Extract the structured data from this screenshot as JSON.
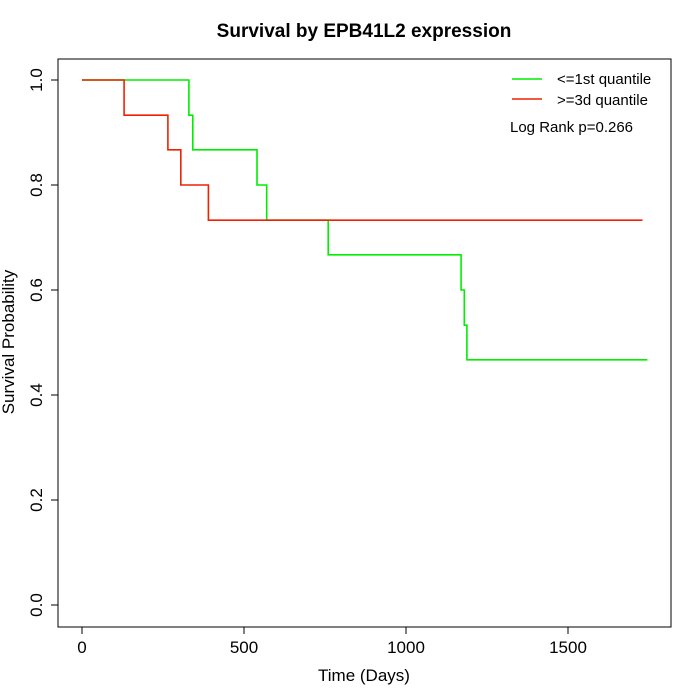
{
  "chart_data": {
    "type": "line",
    "title": "Survival by EPB41L2 expression",
    "xlabel": "Time (Days)",
    "ylabel": "Survival Probability",
    "xlim": [
      0,
      1750
    ],
    "ylim": [
      0,
      1
    ],
    "x_ticks": [
      0,
      500,
      1000,
      1500
    ],
    "y_ticks": [
      0.0,
      0.2,
      0.4,
      0.6,
      0.8,
      1.0
    ],
    "x_tick_labels": [
      "0",
      "500",
      "1000",
      "1500"
    ],
    "y_tick_labels": [
      "0.0",
      "0.2",
      "0.4",
      "0.6",
      "0.8",
      "1.0"
    ],
    "legend_position": "top-right",
    "annotation": "Log Rank p=0.266",
    "grid": false,
    "series": [
      {
        "name": "<=1st quantile",
        "color": "#00ee00",
        "step": true,
        "points": [
          [
            0,
            1.0
          ],
          [
            330,
            1.0
          ],
          [
            330,
            0.933
          ],
          [
            342,
            0.933
          ],
          [
            342,
            0.867
          ],
          [
            540,
            0.867
          ],
          [
            540,
            0.8
          ],
          [
            570,
            0.8
          ],
          [
            570,
            0.733
          ],
          [
            760,
            0.733
          ],
          [
            760,
            0.667
          ],
          [
            1170,
            0.667
          ],
          [
            1170,
            0.6
          ],
          [
            1180,
            0.6
          ],
          [
            1180,
            0.533
          ],
          [
            1188,
            0.533
          ],
          [
            1188,
            0.467
          ],
          [
            1745,
            0.467
          ]
        ]
      },
      {
        "name": ">=3d quantile",
        "color": "#ee2200",
        "step": true,
        "points": [
          [
            0,
            1.0
          ],
          [
            130,
            1.0
          ],
          [
            130,
            0.933
          ],
          [
            265,
            0.933
          ],
          [
            265,
            0.867
          ],
          [
            305,
            0.867
          ],
          [
            305,
            0.8
          ],
          [
            390,
            0.8
          ],
          [
            390,
            0.733
          ],
          [
            1730,
            0.733
          ]
        ]
      }
    ]
  }
}
